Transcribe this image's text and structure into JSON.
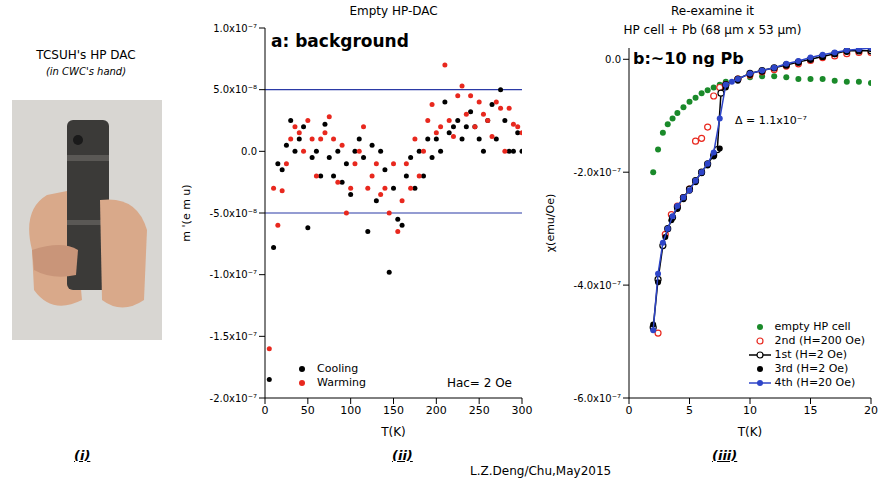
{
  "photo_panel": {
    "title": "TCSUH's HP DAC",
    "subtitle": "(in CWC's hand)"
  },
  "panel_labels": [
    "(i)",
    "(ii)",
    "(iii)"
  ],
  "credit": "L.Z.Deng/Chu,May2015",
  "chart_data": [
    {
      "type": "scatter",
      "title": "Empty HP-DAC",
      "annotations": [
        "a: background",
        "Hac= 2 Oe"
      ],
      "x_label": "T(K)",
      "y_label": "m '(e m u)",
      "xlim": [
        0,
        300
      ],
      "xticks": [
        0,
        50,
        100,
        150,
        200,
        250,
        300
      ],
      "ylim": [
        -2e-07,
        1e-07
      ],
      "yticks": [
        {
          "value": -2e-07,
          "label": "-2.0x10⁻⁷"
        },
        {
          "value": -1.5e-07,
          "label": "-1.5x10⁻⁷"
        },
        {
          "value": -1e-07,
          "label": "-1.0x10⁻⁷"
        },
        {
          "value": -5e-08,
          "label": "-5.0x10⁻⁸"
        },
        {
          "value": 0,
          "label": "0.0"
        },
        {
          "value": 5e-08,
          "label": "5.0x10⁻⁸"
        },
        {
          "value": 1e-07,
          "label": "1.0x10⁻⁷"
        }
      ],
      "grid": false,
      "legend": "lower left",
      "reference_lines": {
        "values": [
          5e-08,
          -5e-08
        ],
        "color": "#2b3aa6"
      },
      "x": [
        5,
        10,
        15,
        20,
        25,
        30,
        35,
        40,
        45,
        50,
        55,
        60,
        65,
        70,
        75,
        80,
        85,
        90,
        95,
        100,
        105,
        110,
        115,
        120,
        125,
        130,
        135,
        140,
        145,
        150,
        155,
        160,
        165,
        170,
        175,
        180,
        185,
        190,
        195,
        200,
        205,
        210,
        215,
        220,
        225,
        230,
        235,
        240,
        245,
        250,
        255,
        260,
        265,
        270,
        275,
        280,
        285,
        290,
        295,
        300
      ],
      "series": [
        {
          "name": "Cooling",
          "color": "#000000",
          "marker": "circle",
          "line_style": "none",
          "values": [
            -1.85e-07,
            -7.8e-08,
            -1e-08,
            -1.5e-08,
            5e-09,
            2.5e-08,
            0,
            1e-08,
            2e-08,
            -6.2e-08,
            -5e-09,
            0,
            -2e-08,
            2.2e-08,
            -5e-09,
            -2e-08,
            0,
            -2.5e-08,
            -1e-08,
            -3.5e-08,
            0,
            1e-08,
            -5e-09,
            -6.5e-08,
            5e-09,
            -4e-08,
            0,
            -1.5e-08,
            -9.8e-08,
            -3e-08,
            -5.5e-08,
            -6e-08,
            -2e-08,
            -5e-09,
            -3e-08,
            0,
            -2e-08,
            1e-08,
            -5e-09,
            1e-08,
            0,
            4e-08,
            1.5e-08,
            2e-08,
            2.5e-08,
            1e-08,
            2e-08,
            3.2e-08,
            2e-08,
            1e-08,
            0,
            2.5e-08,
            3.8e-08,
            1e-08,
            5e-08,
            2.5e-08,
            0,
            0,
            1.5e-08,
            0
          ]
        },
        {
          "name": "Warming",
          "color": "#e8281e",
          "marker": "circle",
          "line_style": "none",
          "values": [
            -1.6e-07,
            -3e-08,
            -6e-08,
            -3.2e-08,
            -1e-08,
            1e-08,
            2e-08,
            1.5e-08,
            0,
            2.5e-08,
            1e-08,
            -2e-08,
            1e-08,
            1.5e-08,
            2.8e-08,
            1e-08,
            -2.5e-08,
            5e-09,
            -5e-08,
            -3e-08,
            -1e-08,
            0,
            2e-08,
            -3e-08,
            -2e-08,
            -1e-08,
            -3.5e-08,
            -3e-08,
            -5e-08,
            -1e-08,
            -6.5e-08,
            -4e-08,
            -1e-08,
            -3e-08,
            1e-08,
            -2e-08,
            0,
            2.5e-08,
            3.8e-08,
            1.5e-08,
            2e-08,
            7e-08,
            2.5e-08,
            1.2e-08,
            4.5e-08,
            5.3e-08,
            3e-08,
            4.5e-08,
            2e-08,
            4e-08,
            3e-08,
            2.5e-08,
            1.2e-08,
            4e-08,
            3.5e-08,
            0,
            3.5e-08,
            2.2e-08,
            2e-08,
            1.5e-08
          ]
        }
      ]
    },
    {
      "type": "scatter",
      "supertitle": "Re-examine it",
      "title": "HP cell + Pb (68 μm x 53 μm)",
      "annotations": [
        "b:~10 ng Pb",
        "Δ = 1.1x10⁻⁷"
      ],
      "x_label": "T(K)",
      "y_label": "χ(emu/Oe)",
      "xlim": [
        0,
        20
      ],
      "xticks": [
        0,
        5,
        10,
        15,
        20
      ],
      "ylim": [
        -6e-07,
        2e-08
      ],
      "yticks": [
        {
          "value": -6e-07,
          "label": "-6.0x10⁻⁷"
        },
        {
          "value": -4e-07,
          "label": "-4.0x10⁻⁷"
        },
        {
          "value": -2e-07,
          "label": "-2.0x10⁻⁷"
        },
        {
          "value": 0,
          "label": "0.0"
        }
      ],
      "grid": false,
      "legend": "lower right",
      "series": [
        {
          "name": "empty HP cell",
          "color": "#1a8a2a",
          "marker": "circle",
          "line_style": "none",
          "x": [
            2,
            2.4,
            2.8,
            3.2,
            3.6,
            4,
            4.5,
            5,
            5.5,
            6,
            6.5,
            7,
            7.5,
            8,
            9,
            10,
            11,
            12,
            13,
            14,
            15,
            16,
            17,
            18,
            19,
            20
          ],
          "values": [
            -2e-07,
            -1.6e-07,
            -1.3e-07,
            -1.15e-07,
            -1.05e-07,
            -9.5e-08,
            -8.5e-08,
            -7.5e-08,
            -6.8e-08,
            -6e-08,
            -5.5e-08,
            -5e-08,
            -4.5e-08,
            -4e-08,
            -3.5e-08,
            -3.2e-08,
            -3e-08,
            -3e-08,
            -3.2e-08,
            -3.5e-08,
            -3.5e-08,
            -3.5e-08,
            -3.8e-08,
            -4e-08,
            -4e-08,
            -4.2e-08
          ]
        },
        {
          "name": "2nd (H=200 Oe)",
          "color": "#e8281e",
          "marker": "open_circle",
          "line_style": "none",
          "x": [
            2.4,
            3,
            3.5,
            4,
            4.5,
            5,
            5.5,
            6,
            6.5,
            7,
            7.5,
            8,
            9,
            10,
            11,
            12,
            13,
            14,
            15,
            16,
            17,
            18,
            19,
            20
          ],
          "values": [
            -4.85e-07,
            -3.1e-07,
            -2.75e-07,
            -2.6e-07,
            -2.45e-07,
            -2.3e-07,
            -1.45e-07,
            -1.4e-07,
            -1.2e-07,
            -6.5e-08,
            -5e-08,
            -4.5e-08,
            -3.5e-08,
            -2.8e-08,
            -2.2e-08,
            -1.8e-08,
            -1.2e-08,
            -8e-09,
            -2e-09,
            3e-09,
            6e-09,
            1e-08,
            1.2e-08,
            1.2e-08
          ]
        },
        {
          "name": "1st (H=2 Oe)",
          "color": "#000000",
          "marker": "open_circle",
          "line_style": "solid",
          "x": [
            2,
            2.4,
            2.8,
            3.2,
            3.6,
            4,
            4.5,
            5,
            5.5,
            6,
            6.5,
            7,
            7.3,
            7.6,
            8,
            9,
            10,
            11,
            12,
            13,
            14,
            15,
            16,
            17,
            18,
            19,
            20
          ],
          "values": [
            -4.75e-07,
            -3.9e-07,
            -3.3e-07,
            -3e-07,
            -2.8e-07,
            -2.62e-07,
            -2.45e-07,
            -2.3e-07,
            -2.15e-07,
            -2e-07,
            -1.85e-07,
            -1.7e-07,
            -1.6e-07,
            -6e-08,
            -4.5e-08,
            -3.5e-08,
            -2.5e-08,
            -2e-08,
            -1.5e-08,
            -1e-08,
            -5e-09,
            0,
            5e-09,
            1e-08,
            1.5e-08,
            1.5e-08,
            1.5e-08
          ]
        },
        {
          "name": "3rd (H=2 Oe)",
          "color": "#000000",
          "marker": "circle",
          "line_style": "none",
          "x": [
            2,
            2.4,
            3,
            3.5,
            4,
            4.5,
            5,
            5.5,
            6,
            6.5,
            7,
            7.5,
            8,
            9,
            10,
            11,
            12,
            13,
            14,
            15,
            16,
            17,
            18,
            19,
            20
          ],
          "values": [
            -4.7e-07,
            -3.95e-07,
            -3.15e-07,
            -2.85e-07,
            -2.65e-07,
            -2.48e-07,
            -2.33e-07,
            -2.18e-07,
            -2.02e-07,
            -1.88e-07,
            -1.72e-07,
            -1.58e-07,
            -5e-08,
            -3.8e-08,
            -2.8e-08,
            -2.2e-08,
            -1.6e-08,
            -1.1e-08,
            -6e-09,
            -1e-09,
            4e-09,
            9e-09,
            1.3e-08,
            1.6e-08,
            1.8e-08
          ]
        },
        {
          "name": "4th (H=20 Oe)",
          "color": "#2e45c8",
          "marker": "circle",
          "line_style": "solid",
          "x": [
            2,
            2.4,
            2.8,
            3.2,
            3.6,
            4,
            4.5,
            5,
            5.5,
            6,
            6.5,
            7,
            7.5,
            8,
            8.5,
            9,
            10,
            11,
            12,
            13,
            14,
            15,
            16,
            17,
            18,
            19,
            20
          ],
          "values": [
            -4.8e-07,
            -3.8e-07,
            -3.25e-07,
            -3e-07,
            -2.78e-07,
            -2.6e-07,
            -2.45e-07,
            -2.32e-07,
            -2.15e-07,
            -2e-07,
            -1.85e-07,
            -1.65e-07,
            -1.05e-07,
            -4.5e-08,
            -4e-08,
            -3.5e-08,
            -2.5e-08,
            -2e-08,
            -1.5e-08,
            -8e-09,
            -3e-09,
            3e-09,
            8e-09,
            1.2e-08,
            1.6e-08,
            1.8e-08,
            2e-08
          ]
        }
      ]
    }
  ]
}
